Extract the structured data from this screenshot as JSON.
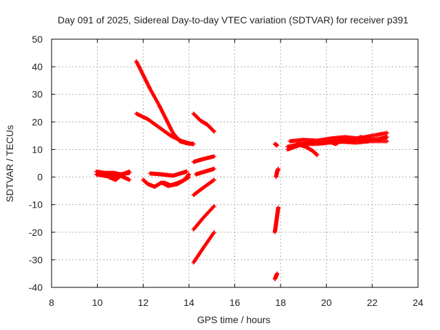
{
  "chart_data": {
    "type": "scatter",
    "title": "Day 091 of 2025, Sidereal Day-to-day VTEC variation (SDTVAR) for receiver p391",
    "xlabel": "GPS time / hours",
    "ylabel": "SDTVAR / TECUs",
    "xlim": [
      8,
      24
    ],
    "ylim": [
      -40,
      50
    ],
    "xticks": [
      8,
      10,
      12,
      14,
      16,
      18,
      20,
      22,
      24
    ],
    "yticks": [
      -40,
      -30,
      -20,
      -10,
      0,
      10,
      20,
      30,
      40,
      50
    ],
    "grid": true,
    "marker": "+",
    "color": "#ff0000",
    "series": [
      {
        "points": [
          [
            11.7,
            42
          ],
          [
            12.0,
            37
          ],
          [
            12.3,
            32
          ],
          [
            12.7,
            26
          ],
          [
            13.0,
            21
          ],
          [
            13.3,
            16
          ],
          [
            13.6,
            13
          ],
          [
            13.9,
            12.3
          ],
          [
            14.2,
            12
          ]
        ]
      },
      {
        "points": [
          [
            11.7,
            23
          ],
          [
            12.2,
            21
          ],
          [
            12.7,
            18
          ],
          [
            13.2,
            15
          ],
          [
            13.7,
            13
          ],
          [
            14.0,
            12.2
          ],
          [
            14.2,
            12
          ]
        ]
      },
      {
        "points": [
          [
            14.2,
            23
          ],
          [
            14.5,
            20.5
          ],
          [
            14.8,
            19
          ],
          [
            15.1,
            16.5
          ]
        ]
      },
      {
        "points": [
          [
            14.2,
            5.5
          ],
          [
            14.6,
            6.5
          ],
          [
            15.1,
            7.5
          ]
        ]
      },
      {
        "points": [
          [
            14.3,
            1
          ],
          [
            14.7,
            2
          ],
          [
            15.1,
            3
          ]
        ]
      },
      {
        "points": [
          [
            14.2,
            -6.5
          ],
          [
            14.6,
            -4
          ],
          [
            15.1,
            -1
          ]
        ]
      },
      {
        "points": [
          [
            14.2,
            -19
          ],
          [
            14.6,
            -15
          ],
          [
            15.1,
            -10.5
          ]
        ]
      },
      {
        "points": [
          [
            14.2,
            -31
          ],
          [
            14.6,
            -26
          ],
          [
            15.1,
            -20
          ]
        ]
      },
      {
        "points": [
          [
            9.95,
            2
          ],
          [
            10.3,
            1.5
          ],
          [
            10.7,
            1.5
          ],
          [
            11.0,
            1
          ],
          [
            11.4,
            1.5
          ]
        ]
      },
      {
        "points": [
          [
            9.95,
            1
          ],
          [
            10.3,
            0.5
          ],
          [
            10.7,
            0
          ],
          [
            11.0,
            0.5
          ],
          [
            11.4,
            -1
          ]
        ]
      },
      {
        "points": [
          [
            10.5,
            0
          ],
          [
            10.8,
            -1
          ],
          [
            11.1,
            1
          ],
          [
            11.4,
            2
          ]
        ]
      },
      {
        "points": [
          [
            12.3,
            1.3
          ],
          [
            12.8,
            1
          ],
          [
            13.3,
            0.5
          ],
          [
            13.7,
            1.5
          ],
          [
            13.9,
            2
          ]
        ]
      },
      {
        "points": [
          [
            12.0,
            -1
          ],
          [
            12.2,
            -2.5
          ],
          [
            12.5,
            -3.5
          ],
          [
            12.8,
            -2
          ],
          [
            13.1,
            -3.2
          ],
          [
            13.4,
            -2.5
          ],
          [
            13.7,
            -1.5
          ],
          [
            14.0,
            0
          ]
        ]
      },
      {
        "points": [
          [
            12.9,
            -2
          ],
          [
            13.2,
            -3
          ],
          [
            13.5,
            -2.5
          ],
          [
            13.8,
            -1
          ],
          [
            14.0,
            1
          ]
        ]
      },
      {
        "points": [
          [
            17.75,
            12
          ],
          [
            17.85,
            11.5
          ]
        ]
      },
      {
        "points": [
          [
            17.8,
            0
          ],
          [
            17.85,
            2
          ],
          [
            17.9,
            3
          ]
        ]
      },
      {
        "points": [
          [
            17.9,
            -11
          ],
          [
            17.85,
            -14
          ],
          [
            17.8,
            -17
          ],
          [
            17.75,
            -20
          ]
        ]
      },
      {
        "points": [
          [
            17.75,
            -37
          ],
          [
            17.8,
            -36
          ],
          [
            17.85,
            -35
          ]
        ]
      },
      {
        "points": [
          [
            18.3,
            10
          ],
          [
            18.8,
            11.5
          ],
          [
            19.3,
            12.5
          ],
          [
            19.8,
            12.2
          ],
          [
            20.3,
            12.8
          ],
          [
            20.8,
            13.2
          ],
          [
            21.3,
            13.5
          ],
          [
            21.8,
            13.3
          ],
          [
            22.3,
            13.8
          ],
          [
            22.65,
            14.5
          ]
        ]
      },
      {
        "points": [
          [
            18.4,
            13
          ],
          [
            19.0,
            13.5
          ],
          [
            19.6,
            13.2
          ],
          [
            20.2,
            14
          ],
          [
            20.8,
            14.5
          ],
          [
            21.4,
            14
          ],
          [
            22.0,
            15
          ],
          [
            22.65,
            16
          ]
        ]
      },
      {
        "points": [
          [
            18.3,
            11
          ],
          [
            18.9,
            12
          ],
          [
            19.5,
            12
          ],
          [
            20.1,
            12.5
          ],
          [
            20.7,
            12.8
          ],
          [
            21.3,
            12.5
          ],
          [
            21.9,
            13
          ],
          [
            22.65,
            13
          ]
        ]
      },
      {
        "points": [
          [
            18.7,
            12
          ],
          [
            19.1,
            11
          ],
          [
            19.4,
            9.5
          ],
          [
            19.6,
            8
          ]
        ]
      },
      {
        "points": [
          [
            20.1,
            13
          ],
          [
            20.4,
            12
          ],
          [
            20.7,
            13.5
          ],
          [
            21.0,
            12.8
          ],
          [
            21.5,
            14.5
          ],
          [
            22.0,
            13.5
          ]
        ]
      }
    ]
  }
}
